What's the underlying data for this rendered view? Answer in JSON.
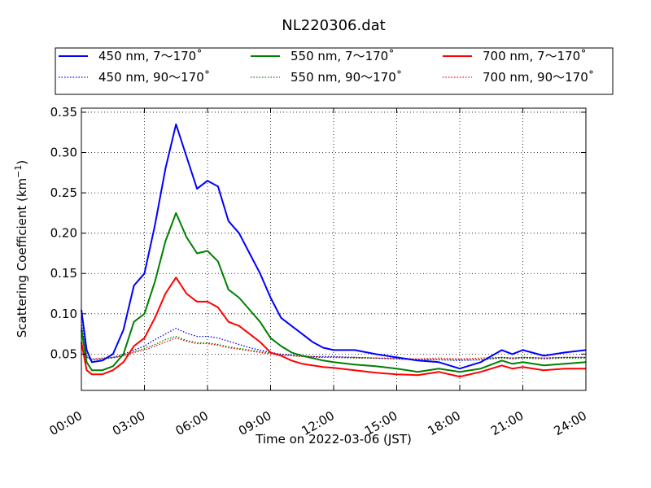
{
  "chart_data": {
    "type": "line",
    "title": "NL220306.dat",
    "xlabel": "Time on 2022-03-06 (JST)",
    "ylabel": "Scattering Coefficient (km",
    "ylabel_unit_exp": "−1",
    "ylabel_close": ")",
    "xlim": [
      "00:00",
      "24:00"
    ],
    "ylim": [
      0.005,
      0.355
    ],
    "x_ticks": [
      "00:00",
      "03:00",
      "06:00",
      "09:00",
      "12:00",
      "15:00",
      "18:00",
      "21:00",
      "24:00"
    ],
    "y_ticks": [
      "0.05",
      "0.10",
      "0.15",
      "0.20",
      "0.25",
      "0.30",
      "0.35"
    ],
    "grid": true,
    "legend_position": "top",
    "x_hours": [
      0,
      0.25,
      0.5,
      1,
      1.5,
      2,
      2.5,
      3,
      3.5,
      4,
      4.5,
      5,
      5.5,
      6,
      6.5,
      7,
      7.5,
      8,
      8.5,
      9,
      9.5,
      10,
      10.5,
      11,
      11.5,
      12,
      13,
      14,
      15,
      16,
      17,
      18,
      19,
      20,
      20.5,
      21,
      22,
      23,
      24
    ],
    "series": [
      {
        "name": "450 nm, 7～170˚",
        "color": "#0000ff",
        "style": "solid",
        "values": [
          0.105,
          0.055,
          0.04,
          0.042,
          0.05,
          0.08,
          0.135,
          0.15,
          0.21,
          0.28,
          0.335,
          0.295,
          0.255,
          0.265,
          0.258,
          0.215,
          0.2,
          0.175,
          0.15,
          0.12,
          0.095,
          0.085,
          0.075,
          0.065,
          0.058,
          0.055,
          0.055,
          0.05,
          0.046,
          0.042,
          0.04,
          0.032,
          0.04,
          0.055,
          0.05,
          0.055,
          0.048,
          0.052,
          0.055
        ]
      },
      {
        "name": "550 nm, 7～170˚",
        "color": "#008000",
        "style": "solid",
        "values": [
          0.08,
          0.04,
          0.03,
          0.03,
          0.035,
          0.05,
          0.09,
          0.1,
          0.14,
          0.19,
          0.225,
          0.195,
          0.175,
          0.178,
          0.165,
          0.13,
          0.12,
          0.105,
          0.09,
          0.07,
          0.06,
          0.052,
          0.048,
          0.045,
          0.042,
          0.04,
          0.037,
          0.035,
          0.032,
          0.028,
          0.032,
          0.028,
          0.032,
          0.042,
          0.038,
          0.04,
          0.036,
          0.038,
          0.04
        ]
      },
      {
        "name": "700 nm, 7～170˚",
        "color": "#ff0000",
        "style": "solid",
        "values": [
          0.065,
          0.03,
          0.025,
          0.025,
          0.03,
          0.04,
          0.06,
          0.07,
          0.095,
          0.125,
          0.145,
          0.125,
          0.115,
          0.115,
          0.108,
          0.09,
          0.085,
          0.075,
          0.065,
          0.052,
          0.048,
          0.042,
          0.038,
          0.036,
          0.034,
          0.033,
          0.03,
          0.027,
          0.025,
          0.024,
          0.028,
          0.022,
          0.028,
          0.036,
          0.032,
          0.034,
          0.03,
          0.032,
          0.032
        ]
      },
      {
        "name": "450 nm, 90～170˚",
        "color": "#0000ff",
        "style": "dotted",
        "values": [
          0.09,
          0.048,
          0.043,
          0.044,
          0.046,
          0.05,
          0.055,
          0.06,
          0.068,
          0.075,
          0.082,
          0.076,
          0.072,
          0.072,
          0.07,
          0.066,
          0.062,
          0.058,
          0.055,
          0.052,
          0.05,
          0.049,
          0.048,
          0.047,
          0.047,
          0.047,
          0.046,
          0.045,
          0.044,
          0.043,
          0.043,
          0.042,
          0.043,
          0.046,
          0.045,
          0.046,
          0.045,
          0.046,
          0.046
        ]
      },
      {
        "name": "550 nm, 90～170˚",
        "color": "#008000",
        "style": "dotted",
        "values": [
          0.085,
          0.046,
          0.043,
          0.044,
          0.045,
          0.048,
          0.053,
          0.057,
          0.062,
          0.068,
          0.072,
          0.067,
          0.064,
          0.064,
          0.062,
          0.059,
          0.057,
          0.055,
          0.053,
          0.051,
          0.049,
          0.048,
          0.047,
          0.046,
          0.046,
          0.046,
          0.045,
          0.045,
          0.044,
          0.043,
          0.043,
          0.043,
          0.043,
          0.045,
          0.044,
          0.045,
          0.044,
          0.045,
          0.045
        ]
      },
      {
        "name": "700 nm, 90～170˚",
        "color": "#ff0000",
        "style": "dotted",
        "values": [
          0.08,
          0.046,
          0.044,
          0.045,
          0.046,
          0.048,
          0.052,
          0.055,
          0.06,
          0.065,
          0.07,
          0.066,
          0.063,
          0.063,
          0.061,
          0.058,
          0.056,
          0.054,
          0.052,
          0.05,
          0.049,
          0.048,
          0.047,
          0.047,
          0.046,
          0.046,
          0.046,
          0.045,
          0.045,
          0.044,
          0.045,
          0.044,
          0.045,
          0.046,
          0.045,
          0.046,
          0.045,
          0.046,
          0.046
        ]
      }
    ]
  }
}
